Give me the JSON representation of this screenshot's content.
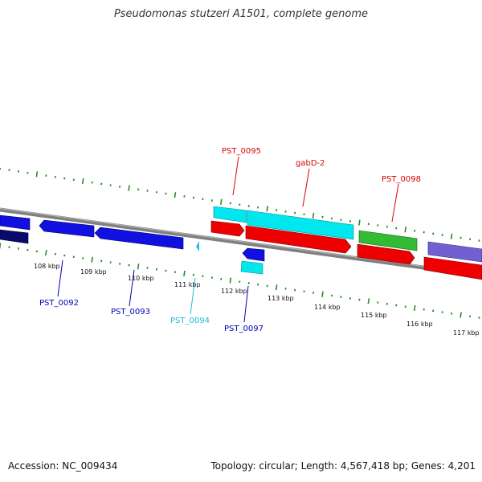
{
  "title": "Pseudomonas stutzeri A1501, complete genome",
  "footer": {
    "accession": "Accession: NC_009434",
    "stats": "Topology: circular; Length: 4,567,418 bp; Genes: 4,201"
  },
  "tick_labels": [
    "108 kbp",
    "109 kbp",
    "110 kbp",
    "111 kbp",
    "112 kbp",
    "113 kbp",
    "114 kbp",
    "115 kbp",
    "116 kbp",
    "117 kbp"
  ],
  "gene_labels": [
    {
      "name": "PST_0095",
      "color": "#dd0000"
    },
    {
      "name": "gabD-2",
      "color": "#dd0000"
    },
    {
      "name": "PST_0098",
      "color": "#dd0000"
    },
    {
      "name": "PST_0092",
      "color": "#0000bb"
    },
    {
      "name": "PST_0093",
      "color": "#0000bb"
    },
    {
      "name": "PST_0094",
      "color": "#22bbdd"
    },
    {
      "name": "PST_0097",
      "color": "#0000bb"
    }
  ],
  "colors": {
    "backbone": "#808080",
    "tick": "#2a8a2a",
    "gene_blue": "#1010e0",
    "gene_navy": "#0a0a6a",
    "gene_cyan": "#00e8ee",
    "gene_red": "#ee0000",
    "gene_green": "#33bb33",
    "gene_purple": "#7060d0"
  }
}
